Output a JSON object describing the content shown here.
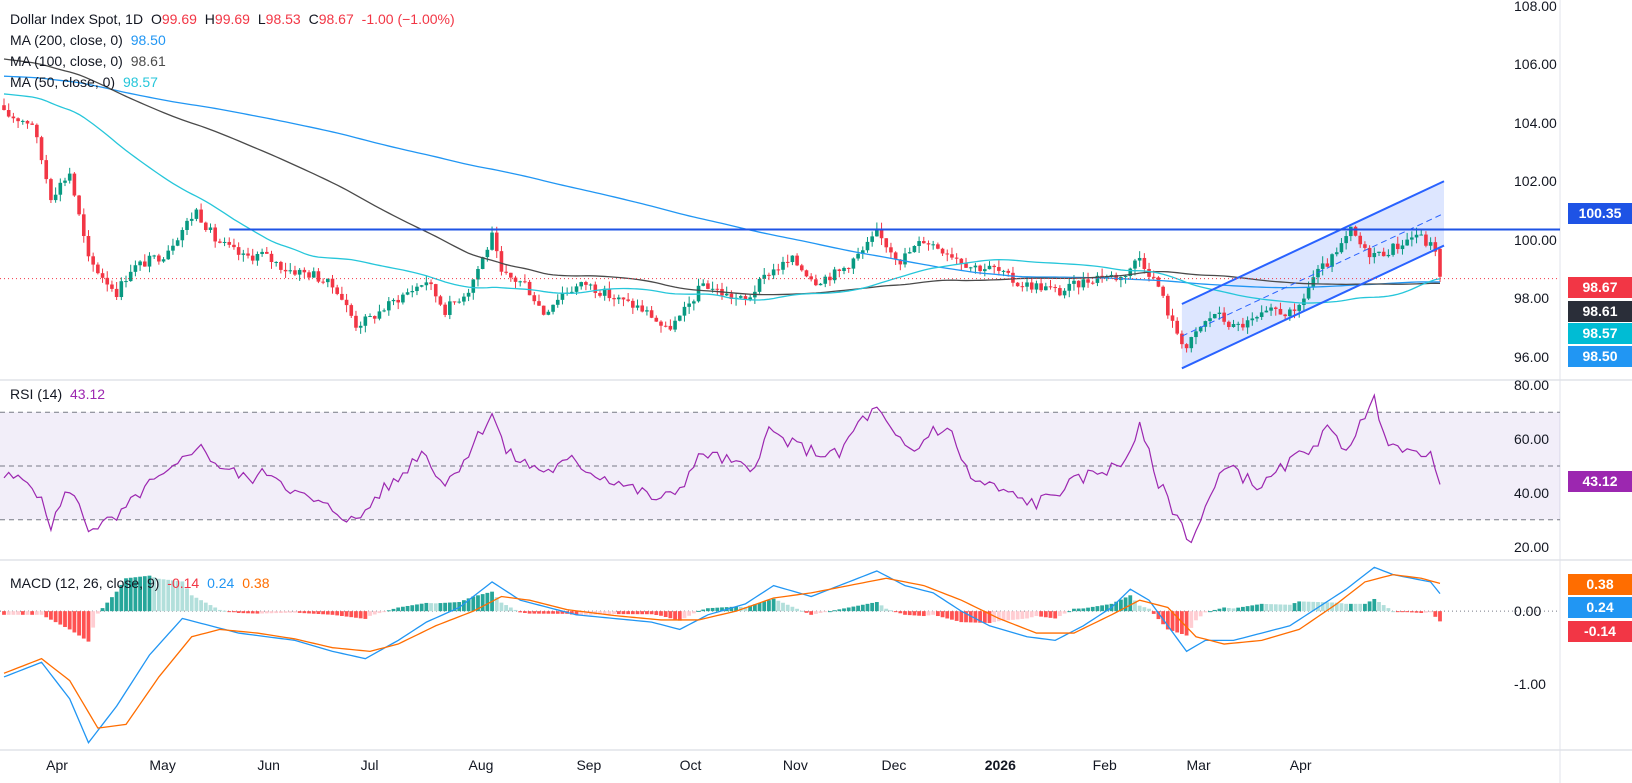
{
  "legend": {
    "symbol": "Dollar Index Spot, 1D",
    "o_label": "O",
    "open": "99.69",
    "h_label": "H",
    "high": "99.69",
    "l_label": "L",
    "low": "98.53",
    "c_label": "C",
    "close": "98.67",
    "change": "-1.00 (−1.00%)",
    "ma200_label": "MA (200, close, 0)",
    "ma200_value": "98.50",
    "ma100_label": "MA (100, close, 0)",
    "ma100_value": "98.61",
    "ma50_label": "MA (50, close, 0)",
    "ma50_value": "98.57",
    "rsi_label": "RSI (14)",
    "rsi_value": "43.12",
    "macd_label": "MACD (12, 26, close, 9)",
    "macd_hist": "-0.14",
    "macd_line": "0.24",
    "macd_signal": "0.38"
  },
  "price_badges": {
    "resistance": "100.35",
    "last": "98.67",
    "ma100": "98.61",
    "ma50": "98.57",
    "ma200": "98.50",
    "rsi": "43.12",
    "macd_signal": "0.38",
    "macd_line": "0.24",
    "macd_hist": "-0.14"
  },
  "colors": {
    "up": "#089981",
    "down": "#f23645",
    "ma200": "#2196f3",
    "ma100": "#4a4a4a",
    "ma50": "#26c6da",
    "resistance": "#1e53e5",
    "channel": "#2962ff",
    "rsi": "#9c27b0",
    "macd": "#2196f3",
    "signal": "#ff6d00"
  },
  "chart_data": [
    {
      "type": "candlestick",
      "title": "Dollar Index Spot, 1D",
      "x_tick_labels": [
        "Apr",
        "May",
        "Jun",
        "Jul",
        "Aug",
        "Sep",
        "Oct",
        "Nov",
        "Dec",
        "2026",
        "Feb",
        "Mar",
        "Apr"
      ],
      "y_tick_labels": [
        "108.00",
        "106.00",
        "104.00",
        "102.00",
        "100.00",
        "98.00",
        "96.00"
      ],
      "ylim": [
        95.2,
        108.2
      ],
      "horizontal_lines": [
        {
          "name": "resistance",
          "value": 100.35
        },
        {
          "name": "last",
          "value": 98.67
        }
      ],
      "close_path": [
        [
          0,
          104.3
        ],
        [
          6,
          104.0
        ],
        [
          10,
          101.5
        ],
        [
          14,
          102.3
        ],
        [
          18,
          99.3
        ],
        [
          24,
          98.2
        ],
        [
          27,
          99.0
        ],
        [
          34,
          99.5
        ],
        [
          41,
          101.0
        ],
        [
          45,
          100.0
        ],
        [
          51,
          99.4
        ],
        [
          55,
          99.5
        ],
        [
          60,
          99.0
        ],
        [
          66,
          98.8
        ],
        [
          71,
          98.3
        ],
        [
          75,
          97.1
        ],
        [
          78,
          97.3
        ],
        [
          84,
          98.0
        ],
        [
          90,
          98.6
        ],
        [
          94,
          97.6
        ],
        [
          99,
          98.3
        ],
        [
          104,
          100.1
        ],
        [
          106,
          98.8
        ],
        [
          111,
          98.5
        ],
        [
          115,
          97.5
        ],
        [
          119,
          98.2
        ],
        [
          124,
          98.5
        ],
        [
          130,
          98.0
        ],
        [
          135,
          97.7
        ],
        [
          138,
          97.4
        ],
        [
          141,
          96.9
        ],
        [
          144,
          97.3
        ],
        [
          149,
          98.5
        ],
        [
          154,
          98.1
        ],
        [
          158,
          97.9
        ],
        [
          163,
          98.9
        ],
        [
          168,
          99.3
        ],
        [
          173,
          98.6
        ],
        [
          178,
          98.9
        ],
        [
          183,
          99.6
        ],
        [
          186,
          100.2
        ],
        [
          191,
          99.3
        ],
        [
          196,
          100.0
        ],
        [
          201,
          99.6
        ],
        [
          206,
          99.1
        ],
        [
          211,
          99.0
        ],
        [
          216,
          98.5
        ],
        [
          221,
          98.4
        ],
        [
          225,
          98.2
        ],
        [
          229,
          98.5
        ],
        [
          234,
          98.8
        ],
        [
          238,
          98.7
        ],
        [
          242,
          99.4
        ],
        [
          246,
          98.4
        ],
        [
          249,
          97.1
        ],
        [
          252,
          96.3
        ],
        [
          255,
          97.0
        ],
        [
          258,
          97.5
        ],
        [
          262,
          97.0
        ],
        [
          266,
          97.2
        ],
        [
          271,
          97.6
        ],
        [
          275,
          97.4
        ],
        [
          279,
          98.7
        ],
        [
          284,
          99.5
        ],
        [
          287,
          100.3
        ],
        [
          290,
          99.6
        ],
        [
          293,
          99.5
        ],
        [
          297,
          99.8
        ],
        [
          301,
          100.2
        ],
        [
          303,
          99.9
        ],
        [
          305,
          99.7
        ],
        [
          306,
          98.67
        ]
      ]
    },
    {
      "type": "line",
      "title": "RSI (14)",
      "y_tick_labels": [
        "80.00",
        "60.00",
        "40.00",
        "20.00"
      ],
      "ylim": [
        15,
        82
      ],
      "bands": [
        30,
        50,
        70
      ],
      "rsi_path": [
        [
          0,
          46
        ],
        [
          6,
          44
        ],
        [
          10,
          28
        ],
        [
          14,
          42
        ],
        [
          18,
          27
        ],
        [
          24,
          30
        ],
        [
          30,
          42
        ],
        [
          36,
          48
        ],
        [
          41,
          58
        ],
        [
          46,
          50
        ],
        [
          52,
          45
        ],
        [
          57,
          48
        ],
        [
          62,
          40
        ],
        [
          67,
          36
        ],
        [
          71,
          33
        ],
        [
          75,
          29
        ],
        [
          80,
          40
        ],
        [
          84,
          45
        ],
        [
          89,
          56
        ],
        [
          94,
          43
        ],
        [
          99,
          55
        ],
        [
          104,
          70
        ],
        [
          107,
          55
        ],
        [
          112,
          50
        ],
        [
          116,
          48
        ],
        [
          121,
          52
        ],
        [
          126,
          47
        ],
        [
          131,
          44
        ],
        [
          136,
          40
        ],
        [
          140,
          37
        ],
        [
          144,
          42
        ],
        [
          149,
          55
        ],
        [
          154,
          52
        ],
        [
          159,
          48
        ],
        [
          163,
          63
        ],
        [
          168,
          58
        ],
        [
          173,
          55
        ],
        [
          178,
          54
        ],
        [
          182,
          66
        ],
        [
          186,
          71
        ],
        [
          190,
          60
        ],
        [
          194,
          55
        ],
        [
          198,
          64
        ],
        [
          202,
          62
        ],
        [
          206,
          45
        ],
        [
          211,
          42
        ],
        [
          216,
          38
        ],
        [
          220,
          36
        ],
        [
          224,
          40
        ],
        [
          228,
          44
        ],
        [
          233,
          48
        ],
        [
          238,
          50
        ],
        [
          242,
          64
        ],
        [
          246,
          44
        ],
        [
          250,
          31
        ],
        [
          253,
          22
        ],
        [
          257,
          38
        ],
        [
          261,
          52
        ],
        [
          264,
          46
        ],
        [
          268,
          42
        ],
        [
          273,
          50
        ],
        [
          277,
          55
        ],
        [
          282,
          63
        ],
        [
          286,
          57
        ],
        [
          290,
          68
        ],
        [
          292,
          74
        ],
        [
          295,
          60
        ],
        [
          299,
          54
        ],
        [
          303,
          56
        ],
        [
          305,
          50
        ],
        [
          306,
          43.12
        ]
      ]
    },
    {
      "type": "line",
      "title": "MACD (12, 26, close, 9)",
      "y_tick_labels": [
        "0.00",
        "-1.00"
      ],
      "ylim": [
        -1.9,
        0.7
      ],
      "macd_path": [
        [
          0,
          -0.9
        ],
        [
          8,
          -0.7
        ],
        [
          14,
          -1.2
        ],
        [
          18,
          -1.8
        ],
        [
          24,
          -1.3
        ],
        [
          31,
          -0.6
        ],
        [
          38,
          -0.1
        ],
        [
          44,
          -0.2
        ],
        [
          50,
          -0.3
        ],
        [
          56,
          -0.35
        ],
        [
          62,
          -0.4
        ],
        [
          70,
          -0.55
        ],
        [
          77,
          -0.65
        ],
        [
          84,
          -0.4
        ],
        [
          90,
          -0.15
        ],
        [
          97,
          0.05
        ],
        [
          104,
          0.4
        ],
        [
          110,
          0.15
        ],
        [
          116,
          0.05
        ],
        [
          122,
          -0.05
        ],
        [
          130,
          -0.1
        ],
        [
          138,
          -0.15
        ],
        [
          144,
          -0.25
        ],
        [
          150,
          -0.05
        ],
        [
          158,
          0.1
        ],
        [
          164,
          0.35
        ],
        [
          172,
          0.2
        ],
        [
          180,
          0.4
        ],
        [
          186,
          0.55
        ],
        [
          192,
          0.35
        ],
        [
          198,
          0.25
        ],
        [
          204,
          0.0
        ],
        [
          210,
          -0.2
        ],
        [
          218,
          -0.35
        ],
        [
          224,
          -0.4
        ],
        [
          230,
          -0.2
        ],
        [
          236,
          0.05
        ],
        [
          240,
          0.3
        ],
        [
          244,
          0.15
        ],
        [
          248,
          -0.2
        ],
        [
          252,
          -0.55
        ],
        [
          256,
          -0.4
        ],
        [
          262,
          -0.4
        ],
        [
          268,
          -0.3
        ],
        [
          274,
          -0.2
        ],
        [
          280,
          0.05
        ],
        [
          286,
          0.3
        ],
        [
          292,
          0.6
        ],
        [
          296,
          0.5
        ],
        [
          300,
          0.45
        ],
        [
          304,
          0.4
        ],
        [
          306,
          0.24
        ]
      ],
      "signal_path": [
        [
          0,
          -0.85
        ],
        [
          8,
          -0.65
        ],
        [
          14,
          -0.95
        ],
        [
          20,
          -1.6
        ],
        [
          26,
          -1.55
        ],
        [
          33,
          -0.9
        ],
        [
          40,
          -0.35
        ],
        [
          46,
          -0.25
        ],
        [
          54,
          -0.3
        ],
        [
          62,
          -0.38
        ],
        [
          70,
          -0.5
        ],
        [
          78,
          -0.55
        ],
        [
          84,
          -0.45
        ],
        [
          92,
          -0.2
        ],
        [
          100,
          0.0
        ],
        [
          106,
          0.2
        ],
        [
          112,
          0.15
        ],
        [
          120,
          0.02
        ],
        [
          130,
          -0.06
        ],
        [
          140,
          -0.12
        ],
        [
          148,
          -0.12
        ],
        [
          156,
          0.0
        ],
        [
          164,
          0.18
        ],
        [
          172,
          0.25
        ],
        [
          180,
          0.35
        ],
        [
          188,
          0.45
        ],
        [
          196,
          0.35
        ],
        [
          204,
          0.15
        ],
        [
          212,
          -0.1
        ],
        [
          220,
          -0.3
        ],
        [
          228,
          -0.3
        ],
        [
          236,
          -0.05
        ],
        [
          242,
          0.15
        ],
        [
          248,
          0.05
        ],
        [
          254,
          -0.35
        ],
        [
          260,
          -0.45
        ],
        [
          268,
          -0.4
        ],
        [
          276,
          -0.25
        ],
        [
          284,
          0.1
        ],
        [
          290,
          0.4
        ],
        [
          296,
          0.5
        ],
        [
          302,
          0.45
        ],
        [
          306,
          0.38
        ]
      ]
    }
  ]
}
